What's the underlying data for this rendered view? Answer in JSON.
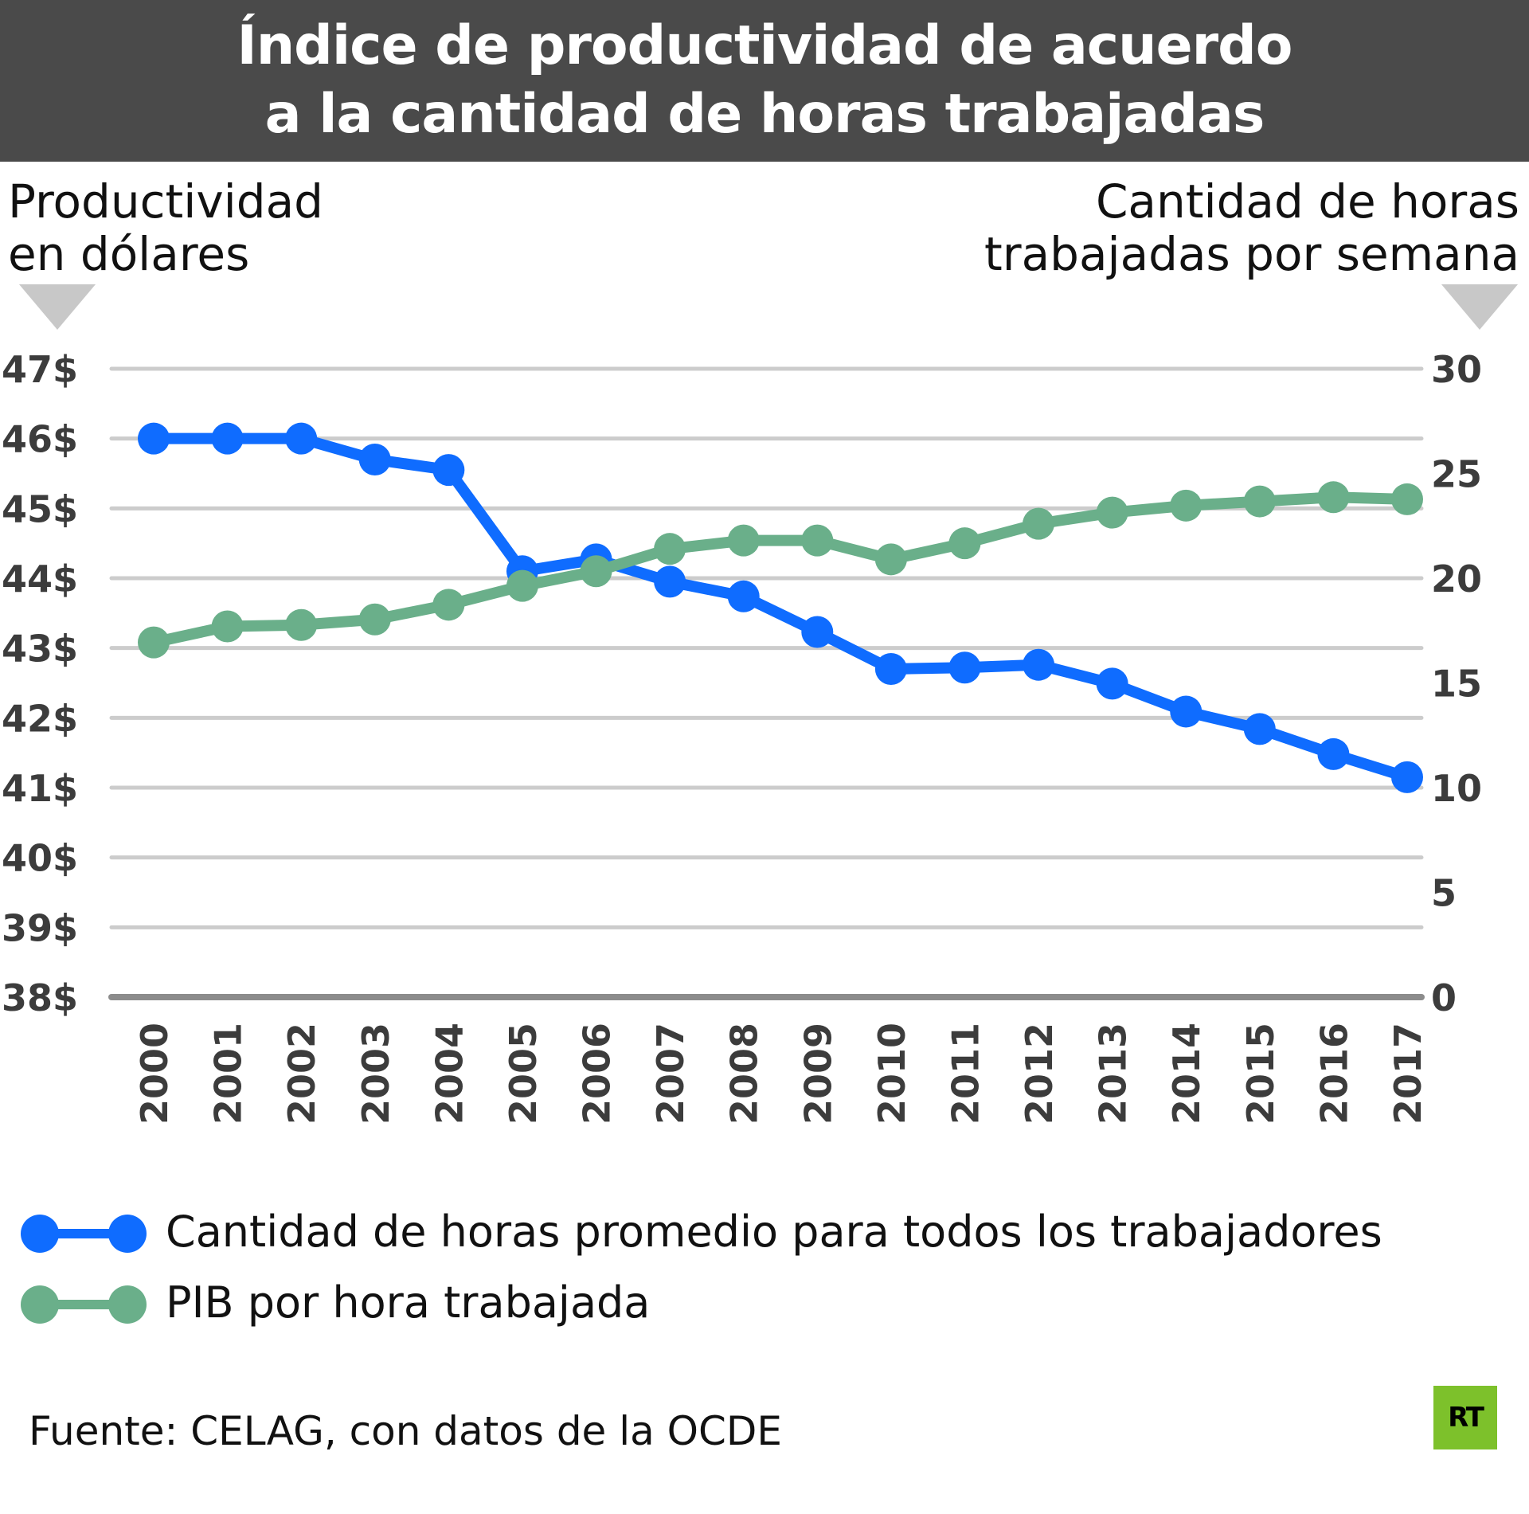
{
  "header": {
    "title_line1": "Índice de productividad de acuerdo",
    "title_line2": "a la cantidad de horas trabajadas"
  },
  "axes": {
    "left_title_line1": "Productividad",
    "left_title_line2": "en dólares",
    "right_title_line1": "Cantidad de horas",
    "right_title_line2": "trabajadas por semana",
    "left_arrow_icon": "down-triangle",
    "right_arrow_icon": "down-triangle"
  },
  "colors": {
    "header_bg": "#4a4a4a",
    "hours_series": "#0f6cff",
    "gdp_series": "#6aaf8a",
    "gridline": "#cccccc",
    "baseline": "#8c8c8c",
    "tick_text": "#3c3c3c",
    "logo_bg": "#7dc12b"
  },
  "chart_data": {
    "type": "line",
    "title": "Índice de productividad de acuerdo a la cantidad de horas trabajadas",
    "xlabel": "",
    "ylabel": "Productividad en dólares",
    "ylabel_right": "Cantidad de horas trabajadas por semana",
    "x": [
      "2000",
      "2001",
      "2002",
      "2003",
      "2004",
      "2005",
      "2006",
      "2007",
      "2008",
      "2009",
      "2010",
      "2011",
      "2012",
      "2013",
      "2014",
      "2015",
      "2016",
      "2017"
    ],
    "ylim": [
      38,
      47
    ],
    "yticks": [
      "38$",
      "39$",
      "40$",
      "41$",
      "42$",
      "43$",
      "44$",
      "45$",
      "46$",
      "47$"
    ],
    "ylim_right": [
      0,
      30
    ],
    "yticks_right": [
      "0",
      "5",
      "10",
      "15",
      "20",
      "25",
      "30"
    ],
    "grid": true,
    "legend_position": "bottom-left",
    "series": [
      {
        "name": "Cantidad de horas promedio para todos los trabajadores",
        "color": "#0f6cff",
        "values": [
          46.0,
          46.0,
          46.0,
          45.7,
          45.55,
          44.1,
          44.27,
          43.95,
          43.74,
          43.23,
          42.7,
          42.72,
          42.76,
          42.49,
          42.09,
          41.84,
          41.48,
          41.15
        ]
      },
      {
        "name": "PIB por hora trabajada",
        "color": "#6aaf8a",
        "values": [
          43.08,
          43.31,
          43.33,
          43.41,
          43.62,
          43.89,
          44.1,
          44.42,
          44.54,
          44.54,
          44.27,
          44.5,
          44.78,
          44.94,
          45.04,
          45.1,
          45.16,
          45.13
        ]
      }
    ]
  },
  "legend": [
    {
      "label": "Cantidad de horas promedio para todos los trabajadores",
      "color": "#0f6cff"
    },
    {
      "label": "PIB por hora trabajada",
      "color": "#6aaf8a"
    }
  ],
  "footer": {
    "source": "Fuente: CELAG, con datos de la OCDE",
    "logo_text": "RT"
  }
}
